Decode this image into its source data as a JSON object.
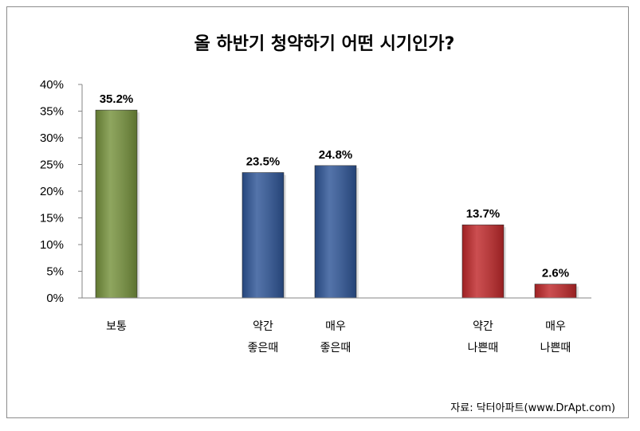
{
  "chart_data": {
    "type": "bar",
    "title": "올 하반기 청약하기 어떤 시기인가?",
    "categories": [
      [
        "보통"
      ],
      [
        "약간",
        "좋은때"
      ],
      [
        "매우",
        "좋은때"
      ],
      [
        "약간",
        "나쁜때"
      ],
      [
        "매우",
        "나쁜때"
      ]
    ],
    "values": [
      35.2,
      23.5,
      24.8,
      13.7,
      2.6
    ],
    "value_labels": [
      "35.2%",
      "23.5%",
      "24.8%",
      "13.7%",
      "2.6%"
    ],
    "colors": [
      "#76923c",
      "#2e5597",
      "#2e5597",
      "#c0282a",
      "#c0282a"
    ],
    "ylim": [
      0,
      40
    ],
    "yticks": [
      "0%",
      "5%",
      "10%",
      "15%",
      "20%",
      "25%",
      "30%",
      "35%",
      "40%"
    ],
    "grid": false,
    "legend": "none",
    "source": "자료: 닥터아파트(www.DrApt.com)"
  }
}
